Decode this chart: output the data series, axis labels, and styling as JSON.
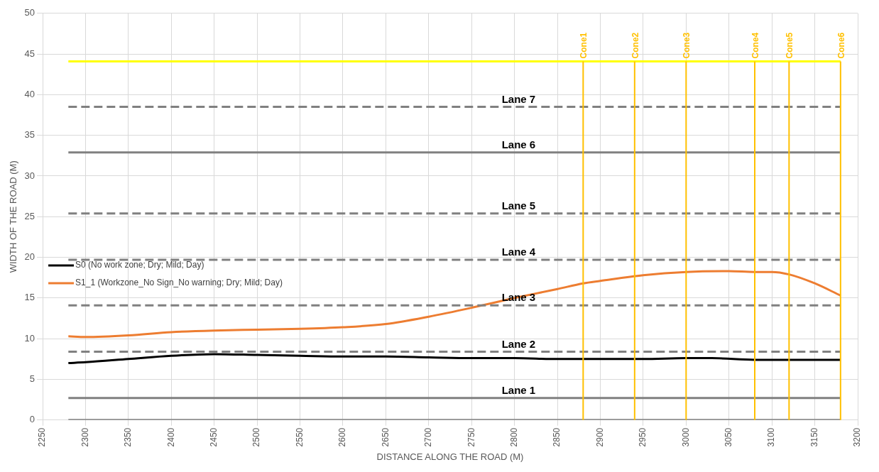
{
  "chart_data": {
    "type": "line",
    "xlabel": "DISTANCE ALONG THE ROAD (M)",
    "ylabel": "WIDTH OF THE ROAD (M)",
    "xlim": [
      2250,
      3200
    ],
    "xticks": [
      2250,
      2300,
      2350,
      2400,
      2450,
      2500,
      2550,
      2600,
      2650,
      2700,
      2750,
      2800,
      2850,
      2900,
      2950,
      3000,
      3050,
      3100,
      3150,
      3200
    ],
    "ylim": [
      0,
      50
    ],
    "yticks": [
      0,
      5,
      10,
      15,
      20,
      25,
      30,
      35,
      40,
      45,
      50
    ],
    "grid": true,
    "legend": "left",
    "marker": "none",
    "series": [
      {
        "color": "#808080",
        "x": [
          2280,
          3180
        ],
        "values": [
          0,
          0
        ],
        "line_style": "solid"
      },
      {
        "color": "#808080",
        "x": [
          2280,
          3180
        ],
        "values": [
          2.7,
          2.7
        ],
        "line_style": "solid"
      },
      {
        "color": "#808080",
        "x": [
          2280,
          3180
        ],
        "values": [
          8.4,
          8.4
        ],
        "line_style": "dashed"
      },
      {
        "color": "#808080",
        "x": [
          2280,
          3180
        ],
        "values": [
          14.1,
          14.1
        ],
        "line_style": "dashed"
      },
      {
        "color": "#808080",
        "x": [
          2280,
          3180
        ],
        "values": [
          19.7,
          19.7
        ],
        "line_style": "dashed"
      },
      {
        "color": "#808080",
        "x": [
          2280,
          3180
        ],
        "values": [
          25.4,
          25.4
        ],
        "line_style": "dashed"
      },
      {
        "color": "#808080",
        "x": [
          2280,
          3180
        ],
        "values": [
          32.9,
          32.9
        ],
        "line_style": "solid"
      },
      {
        "color": "#808080",
        "x": [
          2280,
          3180
        ],
        "values": [
          38.5,
          38.5
        ],
        "line_style": "dashed"
      },
      {
        "color": "#ffff00",
        "x": [
          2280,
          3180
        ],
        "values": [
          44.1,
          44.1
        ],
        "line_style": "solid"
      },
      {
        "name": "S0 (No work zone; Dry; Mild; Day)",
        "color": "#000000",
        "line_style": "solid",
        "x": [
          2280,
          2300,
          2350,
          2400,
          2450,
          2500,
          2550,
          2600,
          2650,
          2700,
          2750,
          2800,
          2850,
          2900,
          2950,
          3000,
          3030,
          3080,
          3120,
          3180
        ],
        "values": [
          7.0,
          7.1,
          7.5,
          7.9,
          8.1,
          8.0,
          7.9,
          7.8,
          7.8,
          7.7,
          7.6,
          7.6,
          7.5,
          7.5,
          7.5,
          7.6,
          7.6,
          7.4,
          7.4,
          7.4
        ]
      },
      {
        "name": "S1_1 (Workzone_No Sign_No warning; Dry; Mild; Day)",
        "color": "#ed7d31",
        "line_style": "solid",
        "x": [
          2280,
          2300,
          2350,
          2400,
          2450,
          2500,
          2550,
          2600,
          2650,
          2700,
          2750,
          2800,
          2850,
          2880,
          2900,
          2950,
          3000,
          3050,
          3080,
          3100,
          3120,
          3150,
          3180
        ],
        "values": [
          10.3,
          10.2,
          10.4,
          10.8,
          11.0,
          11.1,
          11.2,
          11.4,
          11.8,
          12.7,
          13.8,
          15.0,
          16.1,
          16.8,
          17.1,
          17.8,
          18.2,
          18.3,
          18.2,
          18.2,
          17.9,
          16.8,
          15.3
        ]
      }
    ],
    "ref_lines": [
      {
        "axis": "x",
        "value": 2880,
        "label": "Cone1",
        "color": "#ffc000"
      },
      {
        "axis": "x",
        "value": 2940,
        "label": "Cone2",
        "color": "#ffc000"
      },
      {
        "axis": "x",
        "value": 3000,
        "label": "Cone3",
        "color": "#ffc000"
      },
      {
        "axis": "x",
        "value": 3080,
        "label": "Cone4",
        "color": "#ffc000"
      },
      {
        "axis": "x",
        "value": 3120,
        "label": "Cone5",
        "color": "#ffc000"
      },
      {
        "axis": "x",
        "value": 3180,
        "label": "Cone6",
        "color": "#ffc000"
      }
    ],
    "annotations": [
      "Lane 1",
      "Lane 2",
      "Lane 3",
      "Lane 4",
      "Lane 5",
      "Lane 6",
      "Lane 7"
    ]
  }
}
